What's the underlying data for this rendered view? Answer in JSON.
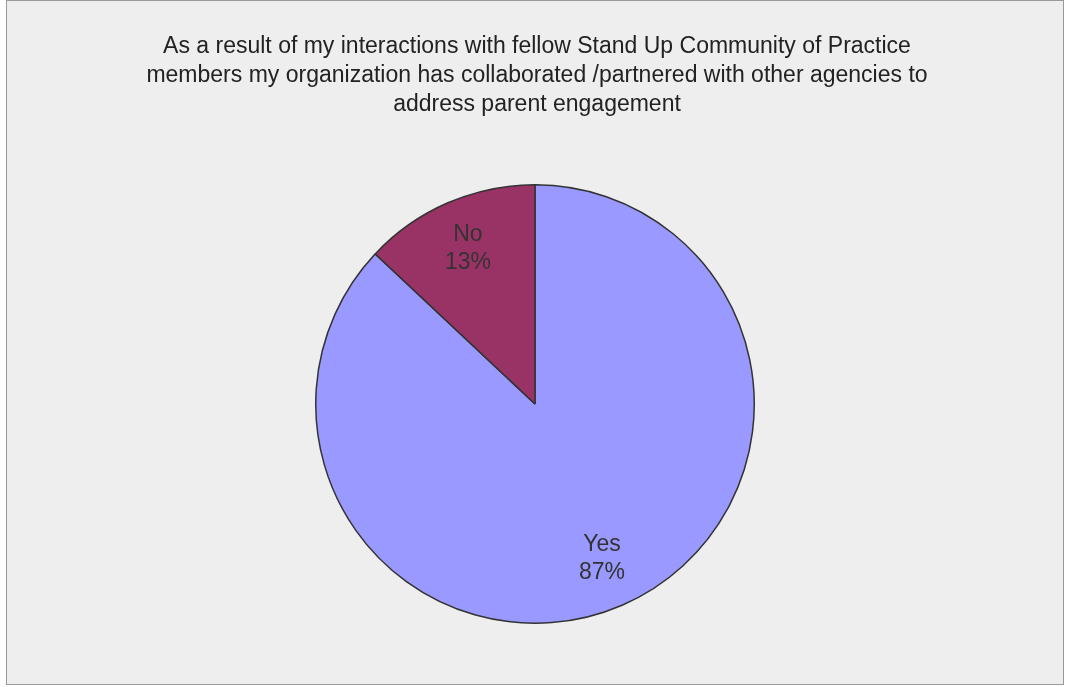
{
  "chart_data": {
    "type": "pie",
    "title": "As a result of my interactions with fellow Stand Up Community of Practice members my organization has collaborated /partnered with other agencies to address parent engagement",
    "categories": [
      "Yes",
      "No"
    ],
    "values": [
      87,
      13
    ],
    "colors": [
      "#9999ff",
      "#993366"
    ],
    "value_labels": [
      "87%",
      "13%"
    ],
    "legend": false
  }
}
